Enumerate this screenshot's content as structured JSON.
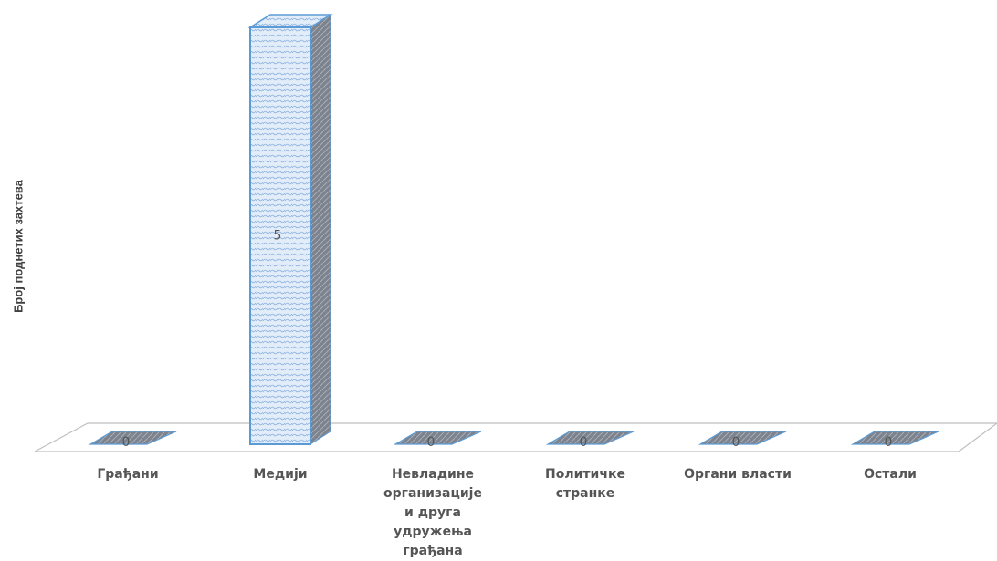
{
  "chart_data": {
    "type": "bar",
    "categories": [
      "Грађани",
      "Медији",
      "Невладине организације и друга удружења грађана",
      "Политичке странке",
      "Органи власти",
      "Остали"
    ],
    "values": [
      0,
      5,
      0,
      0,
      0,
      0
    ],
    "data_labels": [
      "0",
      "5",
      "0",
      "0",
      "0",
      "0"
    ],
    "ylabel": "Број поднетих захтева",
    "ylim": [
      0,
      5
    ],
    "grid": false,
    "legend": "none",
    "three_d": true,
    "colors": {
      "bar_face": "#dbe8f7",
      "bar_stroke": "#5b9bd5",
      "bar_side": "#8a8f99",
      "floor_stroke": "#bfbfbf"
    }
  }
}
